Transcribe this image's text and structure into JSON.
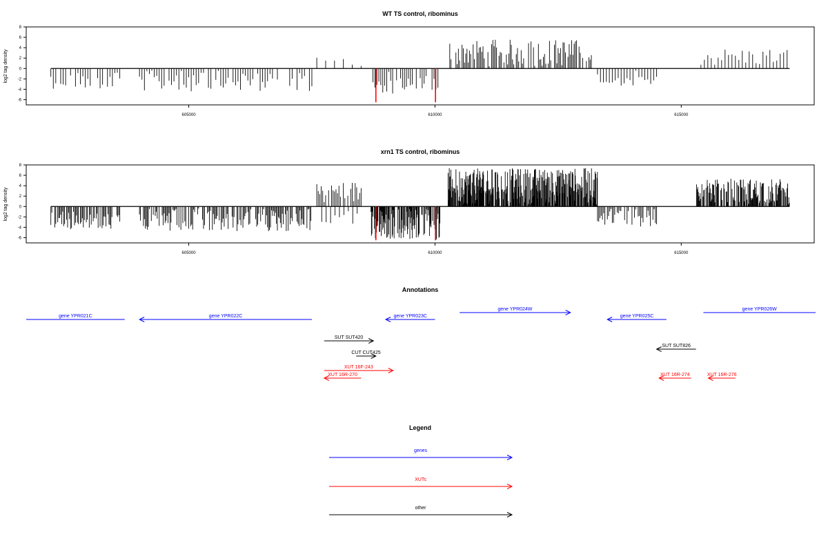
{
  "colors": {
    "gene": "#0000ff",
    "xut": "#ff0000",
    "other": "#000000",
    "highlight": "#ff0000",
    "axis": "#000000"
  },
  "chart_data": [
    {
      "type": "bar",
      "title": "WT TS control, ribominus",
      "xlabel": "",
      "ylabel": "log2 tag density",
      "xlim": [
        601700,
        617700
      ],
      "ylim": [
        -7,
        8
      ],
      "yticks": [
        -6,
        -4,
        -2,
        0,
        2,
        4,
        6,
        8
      ],
      "xticks": [
        605000,
        610000,
        615000
      ],
      "baseline": {
        "x": [
          602200,
          617200
        ],
        "y": 0
      },
      "highlights": [
        {
          "x": 608800,
          "y": -6.5
        },
        {
          "x": 610010,
          "y": -6.5
        }
      ],
      "segments": [
        {
          "x": [
            602200,
            603600
          ],
          "sign": -1,
          "step": 50,
          "amp": 3.5
        },
        {
          "x": [
            604000,
            607500
          ],
          "sign": -1,
          "step": 50,
          "amp": 4.0
        },
        {
          "x": [
            607600,
            608600
          ],
          "sign": 1,
          "step": 180,
          "amp": 2.0
        },
        {
          "x": [
            608700,
            610100
          ],
          "sign": -1,
          "step": 40,
          "amp": 4.5
        },
        {
          "x": [
            610300,
            613200
          ],
          "sign": 1,
          "step": 25,
          "amp": 5.2
        },
        {
          "x": [
            613300,
            614500
          ],
          "sign": -1,
          "step": 60,
          "amp": 3.0
        },
        {
          "x": [
            615400,
            617200
          ],
          "sign": 1,
          "step": 70,
          "amp": 3.5
        }
      ]
    },
    {
      "type": "bar",
      "title": "xrn1 TS control, ribominus",
      "xlabel": "",
      "ylabel": "log2 tag density",
      "xlim": [
        601700,
        617700
      ],
      "ylim": [
        -7,
        8
      ],
      "yticks": [
        -6,
        -4,
        -2,
        0,
        2,
        4,
        6,
        8
      ],
      "xticks": [
        605000,
        610000,
        615000
      ],
      "baseline": {
        "x": [
          602200,
          617200
        ],
        "y": 0
      },
      "highlights": [
        {
          "x": 608800,
          "y": -6.5
        },
        {
          "x": 610010,
          "y": -6.5
        }
      ],
      "segments": [
        {
          "x": [
            602200,
            603600
          ],
          "sign": -1,
          "step": 20,
          "amp": 4.0
        },
        {
          "x": [
            604000,
            607500
          ],
          "sign": -1,
          "step": 20,
          "amp": 4.5
        },
        {
          "x": [
            607600,
            608600
          ],
          "sign": 1,
          "step": 30,
          "amp": 4.5
        },
        {
          "x": [
            607700,
            608500
          ],
          "sign": -1,
          "step": 90,
          "amp": 3.0
        },
        {
          "x": [
            608700,
            610100
          ],
          "sign": -1,
          "step": 10,
          "amp": 6.0
        },
        {
          "x": [
            610250,
            613300
          ],
          "sign": 1,
          "step": 8,
          "amp": 7.0
        },
        {
          "x": [
            613300,
            614500
          ],
          "sign": -1,
          "step": 25,
          "amp": 3.5
        },
        {
          "x": [
            615300,
            617200
          ],
          "sign": 1,
          "step": 12,
          "amp": 5.0
        }
      ]
    }
  ],
  "annotations": {
    "title": "Annotations",
    "features": [
      {
        "label": "gene YPR021C",
        "type": "gene",
        "start": 601700,
        "end": 603700,
        "direction": "none",
        "row": 0
      },
      {
        "label": "gene YPR022C",
        "type": "gene",
        "start": 604000,
        "end": 607500,
        "direction": "left",
        "row": 0
      },
      {
        "label": "gene YPR023C",
        "type": "gene",
        "start": 609000,
        "end": 610000,
        "direction": "left",
        "row": 0
      },
      {
        "label": "gene YPR024W",
        "type": "gene",
        "start": 610500,
        "end": 612750,
        "direction": "right",
        "row": -1
      },
      {
        "label": "gene YPR025C",
        "type": "gene",
        "start": 613500,
        "end": 614700,
        "direction": "left",
        "row": 0
      },
      {
        "label": "gene YPR026W",
        "type": "gene",
        "start": 615450,
        "end": 617750,
        "direction": "none",
        "row": -1
      },
      {
        "label": "SUT SUT420",
        "type": "other",
        "start": 607750,
        "end": 608750,
        "direction": "right",
        "row": 1
      },
      {
        "label": "CUT CUT425",
        "type": "other",
        "start": 608400,
        "end": 608800,
        "direction": "right",
        "row": 2
      },
      {
        "label": "XUT 16F-243",
        "type": "xut",
        "start": 607750,
        "end": 609150,
        "direction": "right",
        "row": 3
      },
      {
        "label": "XUT 16R-270",
        "type": "xut",
        "start": 607750,
        "end": 608500,
        "direction": "left",
        "row": 4
      },
      {
        "label": "SUT SUT826",
        "type": "other",
        "start": 614500,
        "end": 615300,
        "direction": "left",
        "row": 5
      },
      {
        "label": "XUT 16R-274",
        "type": "xut",
        "start": 614550,
        "end": 615200,
        "direction": "left",
        "row": 4
      },
      {
        "label": "XUT 16R-276",
        "type": "xut",
        "start": 615550,
        "end": 616100,
        "direction": "left",
        "row": 4
      }
    ]
  },
  "legend": {
    "title": "Legend",
    "items": [
      {
        "label": "genes",
        "type": "gene"
      },
      {
        "label": "XUTs",
        "type": "xut"
      },
      {
        "label": "other",
        "type": "other"
      }
    ]
  }
}
